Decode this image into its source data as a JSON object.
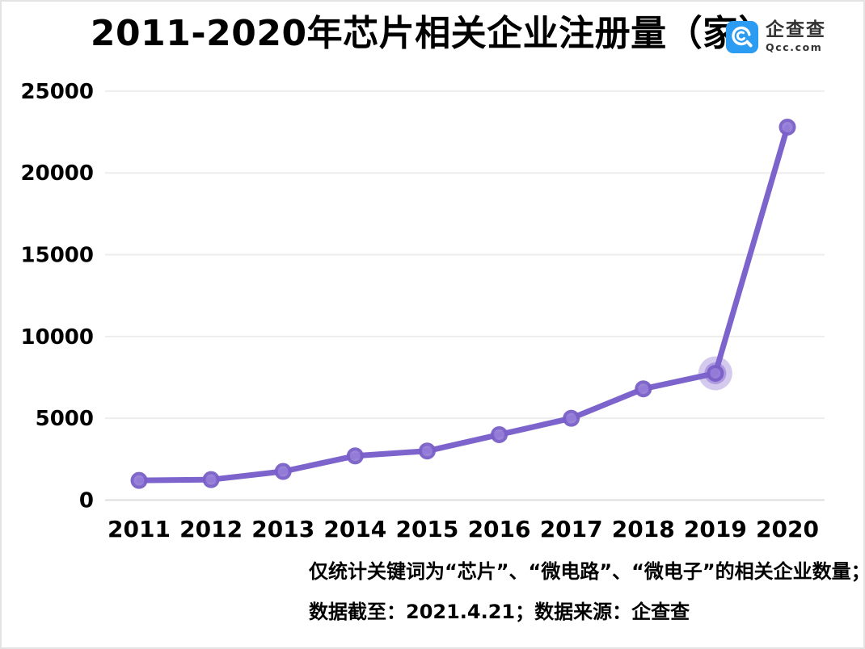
{
  "header": {
    "title": "2011-2020年芯片相关企业注册量（家）",
    "logo": {
      "icon": "qcc-logo-icon",
      "icon_bg_color": "#2b9cf2",
      "name_cn": "企查查",
      "domain": "Qcc.com"
    }
  },
  "chart_data": {
    "type": "line",
    "title": "2011-2020年芯片相关企业注册量（家）",
    "categories": [
      "2011",
      "2012",
      "2013",
      "2014",
      "2015",
      "2016",
      "2017",
      "2018",
      "2019",
      "2020"
    ],
    "values": [
      1200,
      1250,
      1750,
      2700,
      3000,
      4000,
      5000,
      6800,
      7750,
      22800
    ],
    "series_name": "芯片相关企业注册量",
    "xlabel": "",
    "ylabel": "",
    "ylim": [
      0,
      25000
    ],
    "yticks": [
      0,
      5000,
      10000,
      15000,
      20000,
      25000
    ],
    "grid": true,
    "legend_position": "none",
    "highlight_index": 8,
    "highlight_year": "2019",
    "line_color": "#7d63cc",
    "marker_fill": "#957ed8",
    "marker_stroke": "#7a5fc8",
    "halo_color": "#8468cf",
    "grid_color": "#ededed",
    "axis_line_color": "#dedede"
  },
  "footnote": {
    "line1": "仅统计关键词为“芯片”、“微电路”、“微电子”的相关企业数量；",
    "line2": "数据截至：2021.4.21；数据来源：企查查"
  }
}
